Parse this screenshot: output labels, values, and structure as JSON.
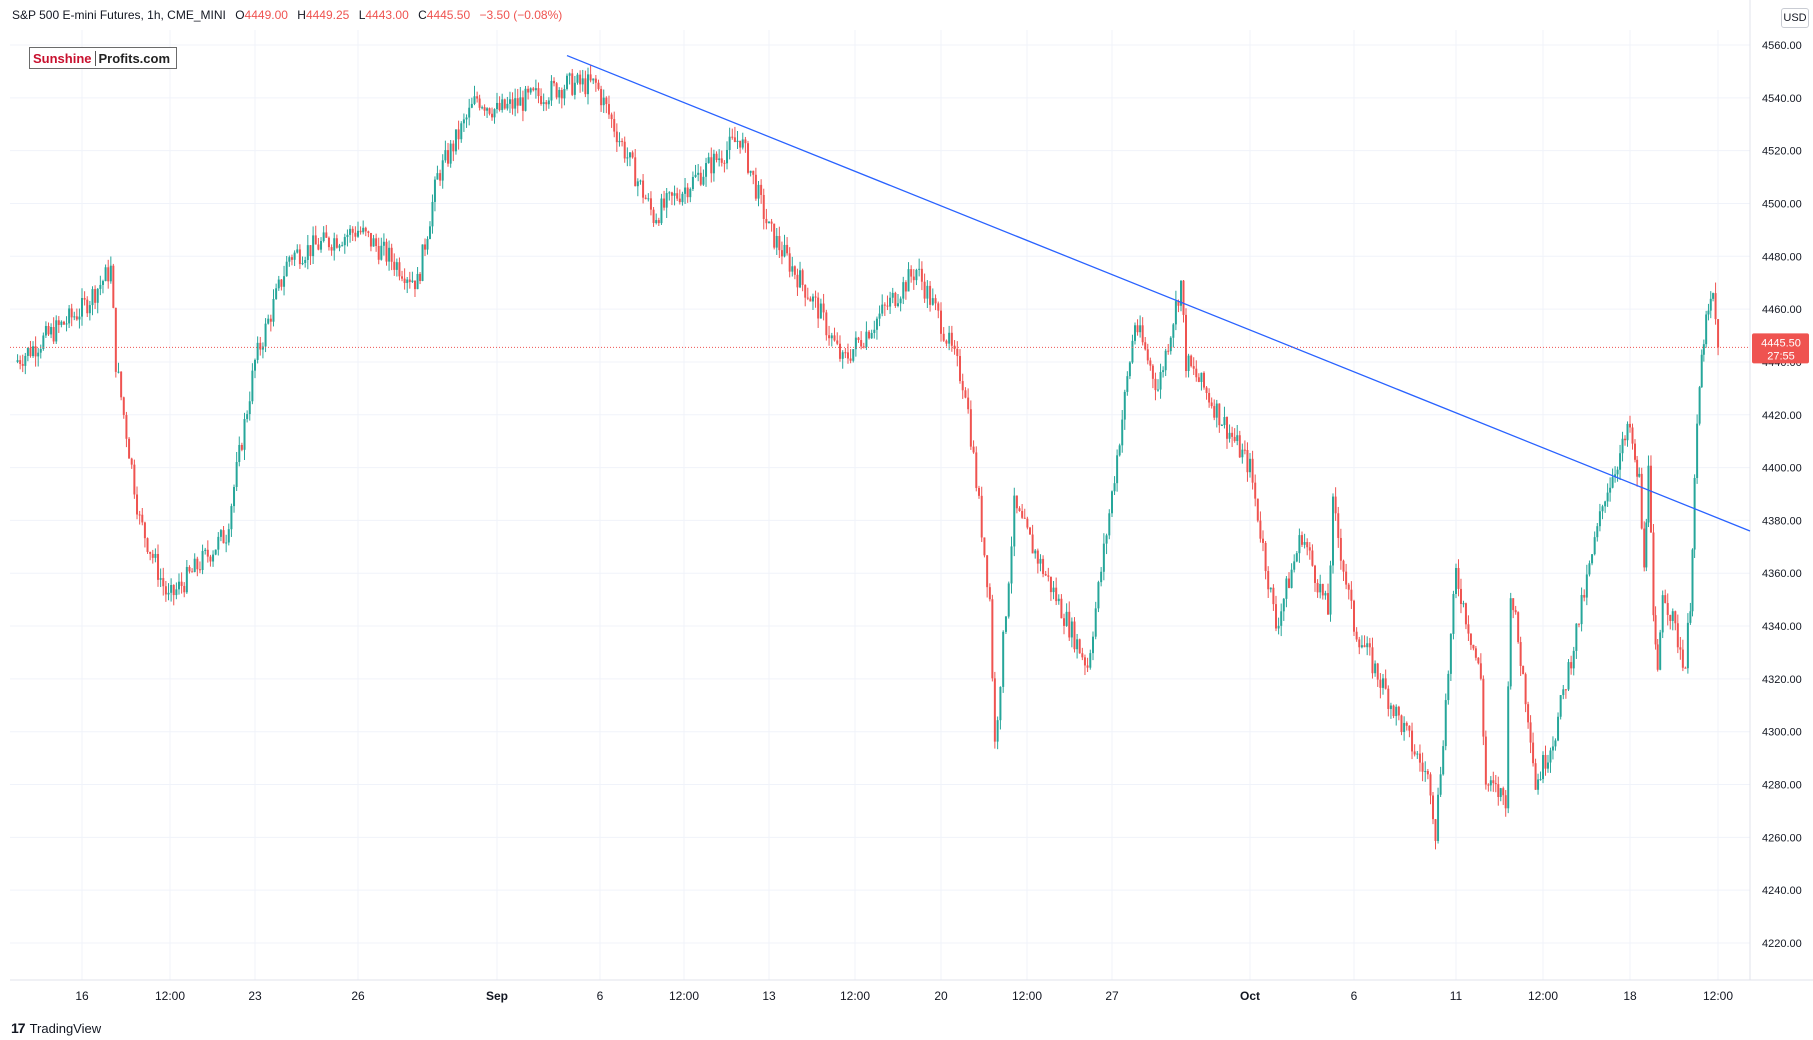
{
  "header": {
    "symbol": "S&P 500 E-mini Futures, 1h, CME_MINI",
    "open_label": "O",
    "open": "4449.00",
    "high_label": "H",
    "high": "4449.25",
    "low_label": "L",
    "low": "4443.00",
    "close_label": "C",
    "close": "4445.50",
    "change": "−3.50 (−0.08%)"
  },
  "logo": {
    "part1": "Sunshine",
    "part2": "Profits.com"
  },
  "currency": "USD",
  "price_tag": {
    "price": "4445.50",
    "countdown": "27:55"
  },
  "branding": "TradingView",
  "colors": {
    "up": "#26a69a",
    "down": "#ef5350",
    "trendline": "#2962ff",
    "price_line": "#ef5350",
    "grid": "#f0f3fa",
    "tag_bg": "#ef5350"
  },
  "chart_data": {
    "type": "candlestick",
    "title": "S&P 500 E-mini Futures, 1h, CME_MINI",
    "ylim": [
      4205,
      4570
    ],
    "yticks": [
      "4560.00",
      "4540.00",
      "4520.00",
      "4500.00",
      "4480.00",
      "4460.00",
      "4440.00",
      "4420.00",
      "4400.00",
      "4380.00",
      "4360.00",
      "4340.00",
      "4320.00",
      "4300.00",
      "4280.00",
      "4260.00",
      "4240.00",
      "4220.00"
    ],
    "xticks": [
      "16",
      "12:00",
      "23",
      "26",
      "Sep",
      "6",
      "12:00",
      "13",
      "12:00",
      "20",
      "12:00",
      "27",
      "Oct",
      "6",
      "11",
      "12:00",
      "18",
      "12:00"
    ],
    "last_price": 4445.5,
    "series": [
      {
        "key_points": [
          {
            "x": "Aug 15",
            "y": 4440
          },
          {
            "x": "Aug 16",
            "y": 4460
          },
          {
            "x": "Aug 17",
            "y": 4475
          },
          {
            "x": "Aug 17",
            "y": 4440
          },
          {
            "x": "Aug 18",
            "y": 4380
          },
          {
            "x": "Aug 19",
            "y": 4350
          },
          {
            "x": "Aug 21",
            "y": 4375
          },
          {
            "x": "Aug 22",
            "y": 4440
          },
          {
            "x": "Aug 23",
            "y": 4480
          },
          {
            "x": "Aug 25",
            "y": 4490
          },
          {
            "x": "Aug 28",
            "y": 4470
          },
          {
            "x": "Aug 29",
            "y": 4510
          },
          {
            "x": "Aug 31",
            "y": 4540
          },
          {
            "x": "Sep 1",
            "y": 4535
          },
          {
            "x": "Sep 5",
            "y": 4545
          },
          {
            "x": "Sep 6",
            "y": 4545
          },
          {
            "x": "Sep 7",
            "y": 4520
          },
          {
            "x": "Sep 8",
            "y": 4495
          },
          {
            "x": "Sep 11",
            "y": 4525
          },
          {
            "x": "Sep 12",
            "y": 4490
          },
          {
            "x": "Sep 14",
            "y": 4460
          },
          {
            "x": "Sep 15",
            "y": 4440
          },
          {
            "x": "Sep 18",
            "y": 4475
          },
          {
            "x": "Sep 19",
            "y": 4455
          },
          {
            "x": "Sep 20",
            "y": 4430
          },
          {
            "x": "Sep 21",
            "y": 4350
          },
          {
            "x": "Sep 21",
            "y": 4295
          },
          {
            "x": "Sep 22",
            "y": 4385
          },
          {
            "x": "Sep 25",
            "y": 4325
          },
          {
            "x": "Sep 26",
            "y": 4390
          },
          {
            "x": "Sep 27",
            "y": 4455
          },
          {
            "x": "Sep 28",
            "y": 4430
          },
          {
            "x": "Sep 29",
            "y": 4470
          },
          {
            "x": "Sep 29",
            "y": 4440
          },
          {
            "x": "Sep 30",
            "y": 4430
          },
          {
            "x": "Oct 2",
            "y": 4400
          },
          {
            "x": "Oct 3",
            "y": 4340
          },
          {
            "x": "Oct 4",
            "y": 4375
          },
          {
            "x": "Oct 5",
            "y": 4345
          },
          {
            "x": "Oct 5",
            "y": 4385
          },
          {
            "x": "Oct 6",
            "y": 4340
          },
          {
            "x": "Oct 9",
            "y": 4280
          },
          {
            "x": "Oct 9",
            "y": 4262
          },
          {
            "x": "Oct 10",
            "y": 4360
          },
          {
            "x": "Oct 11",
            "y": 4320
          },
          {
            "x": "Oct 11",
            "y": 4280
          },
          {
            "x": "Oct 12",
            "y": 4275
          },
          {
            "x": "Oct 12",
            "y": 4355
          },
          {
            "x": "Oct 13",
            "y": 4300
          },
          {
            "x": "Oct 13",
            "y": 4280
          },
          {
            "x": "Oct 14",
            "y": 4300
          },
          {
            "x": "Oct 16",
            "y": 4390
          },
          {
            "x": "Oct 17",
            "y": 4415
          },
          {
            "x": "Oct 17",
            "y": 4400
          },
          {
            "x": "Oct 18",
            "y": 4395
          },
          {
            "x": "Oct 18",
            "y": 4360
          },
          {
            "x": "Oct 19",
            "y": 4405
          },
          {
            "x": "Oct 19",
            "y": 4340
          },
          {
            "x": "Oct 20",
            "y": 4320
          },
          {
            "x": "Oct 20",
            "y": 4355
          },
          {
            "x": "Oct 23",
            "y": 4325
          },
          {
            "x": "Oct 23",
            "y": 4350
          },
          {
            "x": "Oct 24",
            "y": 4395
          },
          {
            "x": "Oct 24",
            "y": 4430
          },
          {
            "x": "Oct 25",
            "y": 4450
          },
          {
            "x": "Oct 26",
            "y": 4465
          },
          {
            "x": "Oct 26",
            "y": 4445.5
          }
        ]
      }
    ],
    "annotations": [
      {
        "type": "trendline",
        "from": {
          "x": "Sep 5",
          "y": 4556
        },
        "to": {
          "x": "Oct 30",
          "y": 4376
        }
      }
    ]
  }
}
